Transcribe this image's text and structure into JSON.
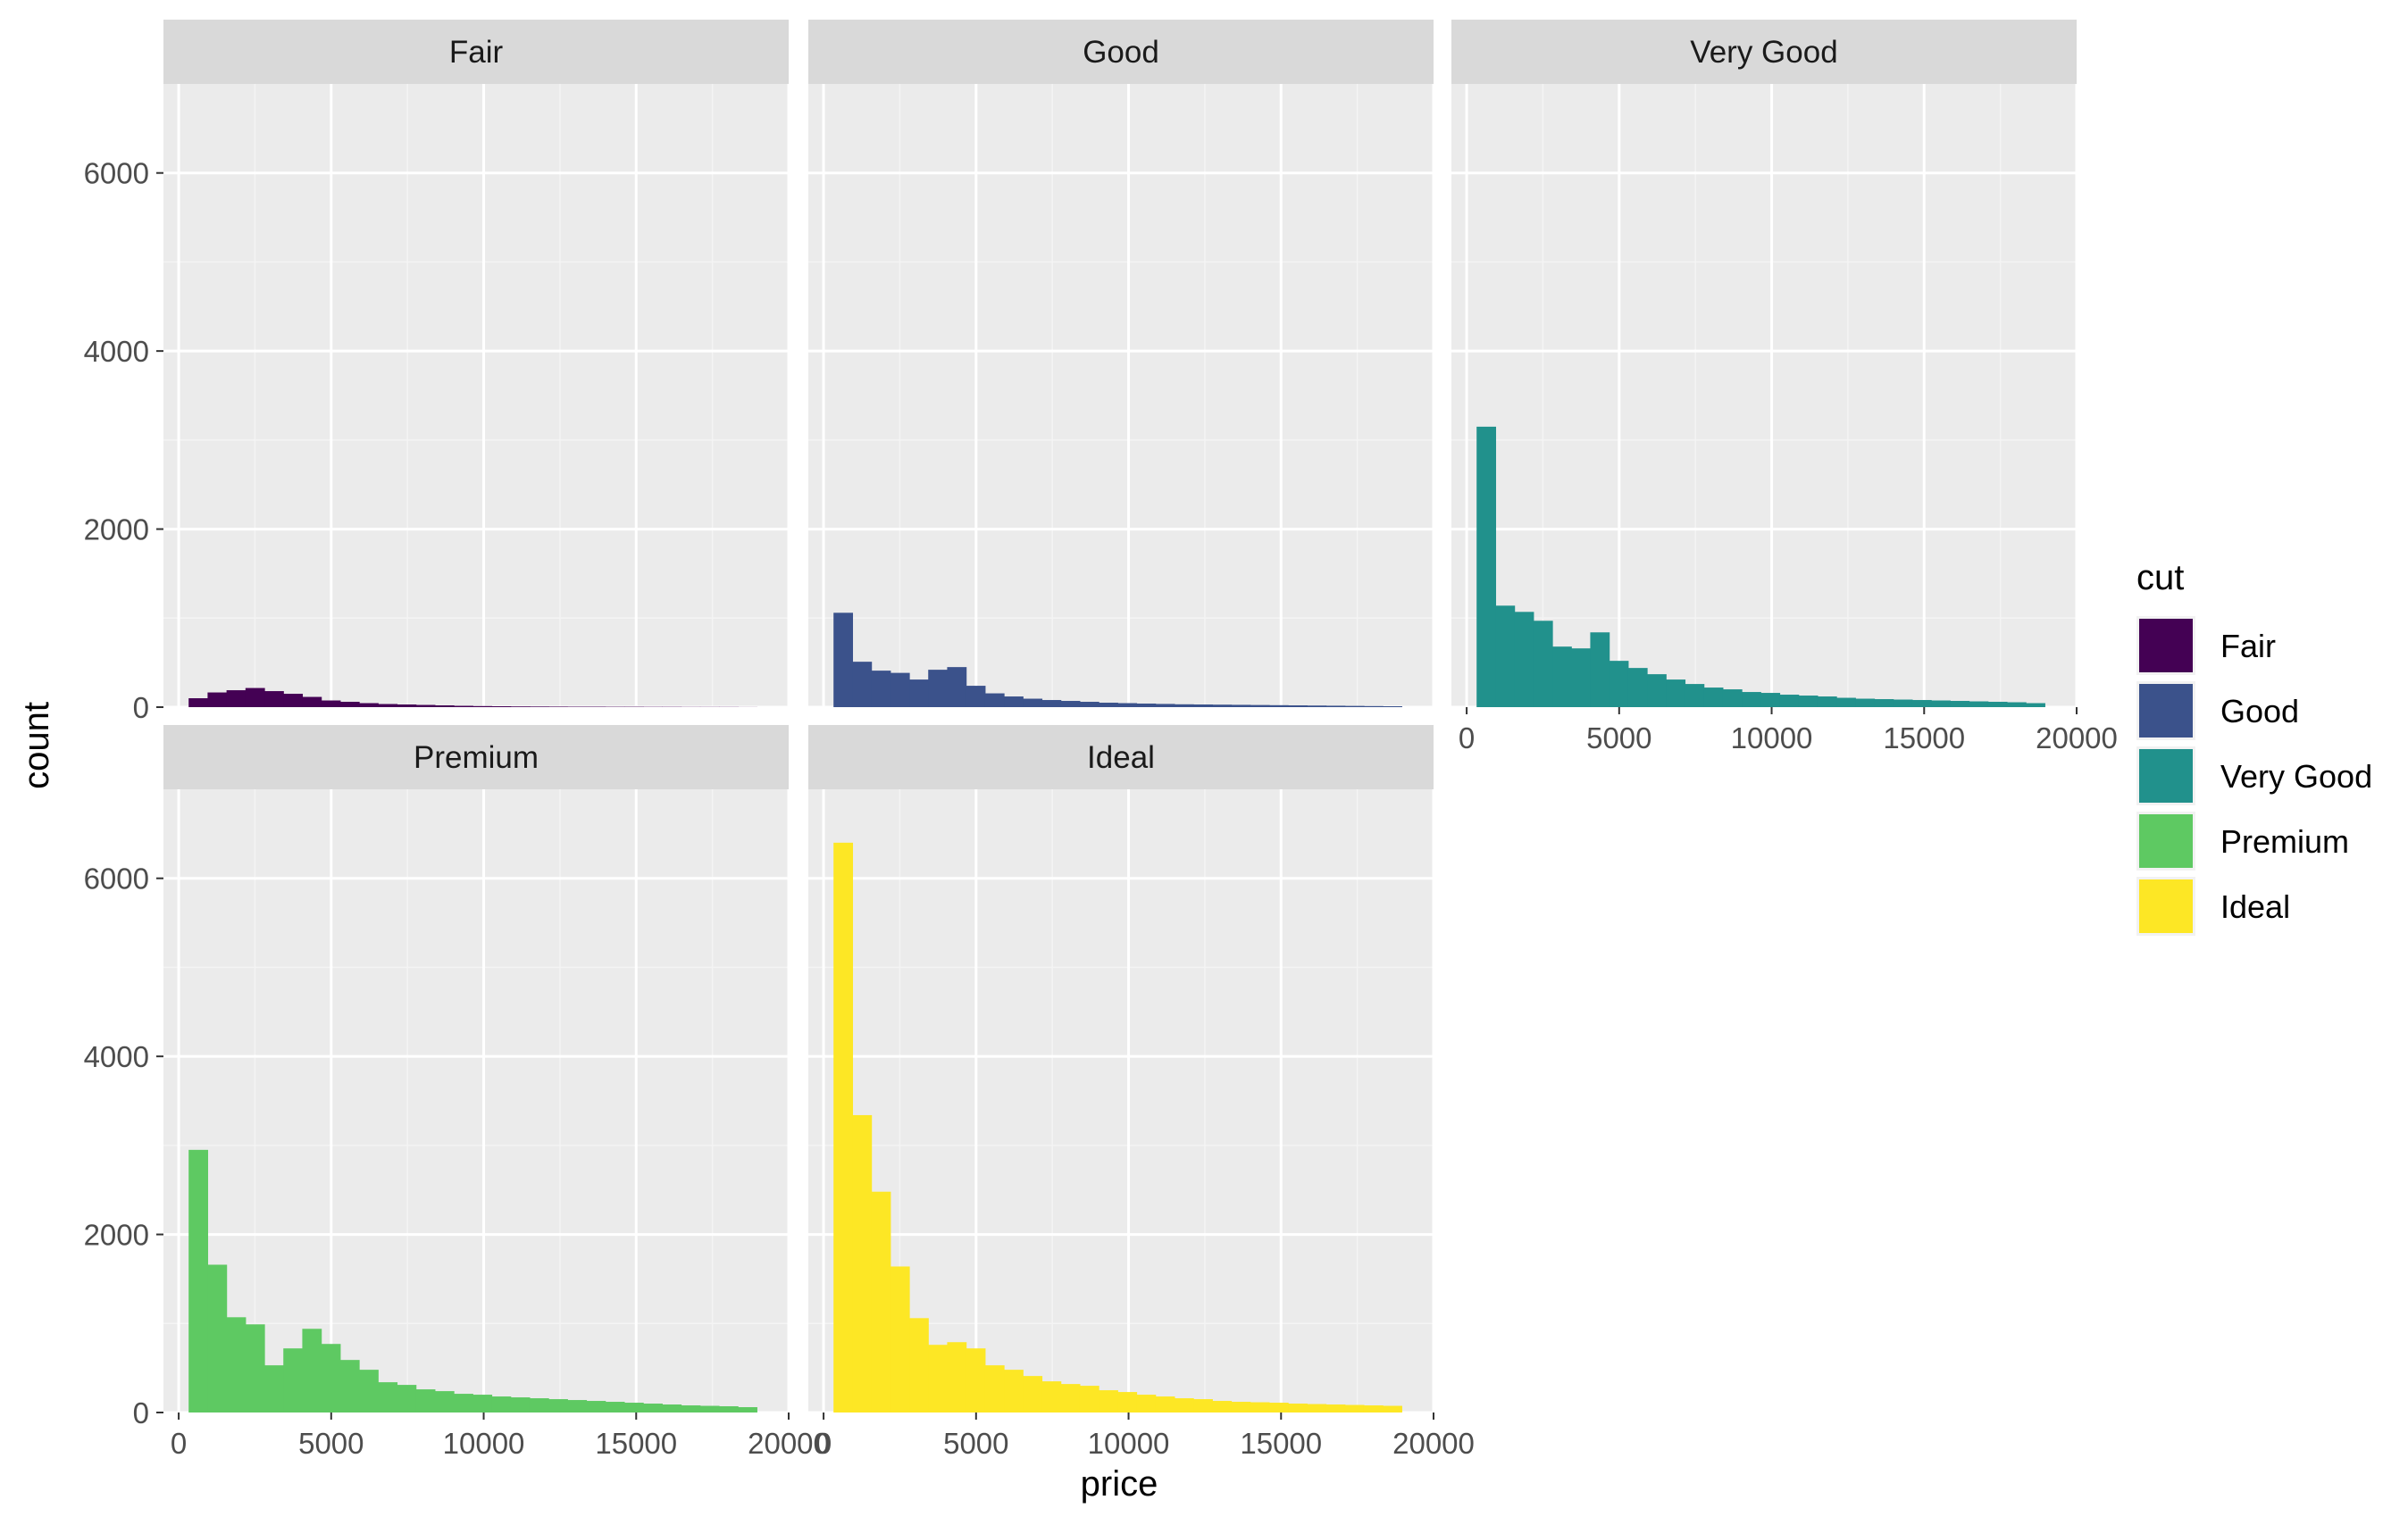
{
  "chart_data": {
    "type": "bar",
    "subtype": "faceted-histogram",
    "title": "",
    "xlabel": "price",
    "ylabel": "count",
    "xlim": [
      -500,
      20000
    ],
    "ylim": [
      0,
      7000
    ],
    "x_ticks": [
      0,
      5000,
      10000,
      15000,
      20000
    ],
    "y_ticks": [
      0,
      2000,
      4000,
      6000
    ],
    "grid": true,
    "legend": {
      "title": "cut",
      "position": "right",
      "entries": [
        "Fair",
        "Good",
        "Very Good",
        "Premium",
        "Ideal"
      ]
    },
    "bins": [
      [
        326,
        947
      ],
      [
        947,
        1568
      ],
      [
        1568,
        2189
      ],
      [
        2189,
        2810
      ],
      [
        2810,
        3431
      ],
      [
        3431,
        4052
      ],
      [
        4052,
        4673
      ],
      [
        4673,
        5294
      ],
      [
        5294,
        5915
      ],
      [
        5915,
        6536
      ],
      [
        6536,
        7157
      ],
      [
        7157,
        7778
      ],
      [
        7778,
        8399
      ],
      [
        8399,
        9020
      ],
      [
        9020,
        9641
      ],
      [
        9641,
        10262
      ],
      [
        10262,
        10883
      ],
      [
        10883,
        11504
      ],
      [
        11504,
        12125
      ],
      [
        12125,
        12746
      ],
      [
        12746,
        13367
      ],
      [
        13367,
        13988
      ],
      [
        13988,
        14609
      ],
      [
        14609,
        15230
      ],
      [
        15230,
        15851
      ],
      [
        15851,
        16472
      ],
      [
        16472,
        17093
      ],
      [
        17093,
        17714
      ],
      [
        17714,
        18335
      ],
      [
        18335,
        18956
      ]
    ],
    "series": [
      {
        "name": "Fair",
        "color": "#440154",
        "values": [
          100,
          165,
          190,
          215,
          180,
          150,
          115,
          75,
          60,
          45,
          35,
          30,
          25,
          20,
          15,
          12,
          10,
          8,
          7,
          6,
          5,
          5,
          4,
          4,
          3,
          3,
          2,
          2,
          2,
          1
        ]
      },
      {
        "name": "Good",
        "color": "#3b528b",
        "values": [
          1060,
          510,
          410,
          385,
          310,
          420,
          450,
          240,
          155,
          120,
          95,
          80,
          70,
          60,
          50,
          45,
          40,
          36,
          32,
          30,
          28,
          26,
          24,
          22,
          20,
          18,
          16,
          14,
          12,
          10
        ]
      },
      {
        "name": "Very Good",
        "color": "#21918c",
        "values": [
          3150,
          1140,
          1070,
          970,
          680,
          660,
          840,
          520,
          440,
          370,
          310,
          260,
          220,
          200,
          170,
          160,
          140,
          130,
          120,
          105,
          95,
          90,
          85,
          80,
          75,
          70,
          65,
          60,
          55,
          45
        ]
      },
      {
        "name": "Premium",
        "color": "#5ec962",
        "values": [
          2950,
          1660,
          1070,
          990,
          530,
          720,
          940,
          770,
          590,
          480,
          340,
          310,
          260,
          240,
          210,
          200,
          180,
          170,
          160,
          150,
          140,
          130,
          120,
          110,
          100,
          90,
          80,
          75,
          70,
          60
        ]
      },
      {
        "name": "Ideal",
        "color": "#fde725",
        "values": [
          6400,
          3340,
          2480,
          1640,
          1060,
          760,
          790,
          720,
          530,
          480,
          410,
          350,
          320,
          300,
          250,
          230,
          200,
          180,
          160,
          150,
          130,
          120,
          115,
          110,
          100,
          95,
          90,
          85,
          80,
          75
        ]
      }
    ]
  }
}
